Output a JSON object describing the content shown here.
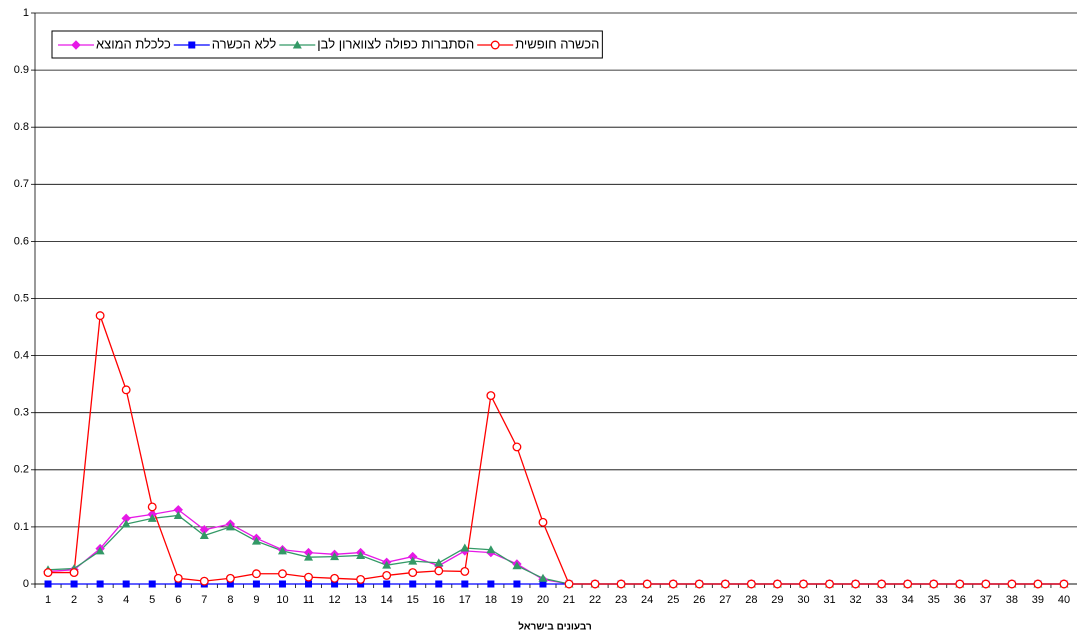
{
  "chart_data": {
    "type": "line",
    "x_label": "רבעונים בישראל",
    "categories": [
      1,
      2,
      3,
      4,
      5,
      6,
      7,
      8,
      9,
      10,
      11,
      12,
      13,
      14,
      15,
      16,
      17,
      18,
      19,
      20,
      21,
      22,
      23,
      24,
      25,
      26,
      27,
      28,
      29,
      30,
      31,
      32,
      33,
      34,
      35,
      36,
      37,
      38,
      39,
      40
    ],
    "ylim": [
      0,
      1
    ],
    "yticks": [
      0,
      0.1,
      0.2,
      0.3,
      0.4,
      0.5,
      0.6,
      0.7,
      0.8,
      0.9,
      1
    ],
    "grid": true,
    "series": [
      {
        "name": "כלכלת המוצא",
        "color": "#e619e6",
        "marker": "diamond",
        "values": [
          0.022,
          0.025,
          0.062,
          0.115,
          0.122,
          0.13,
          0.095,
          0.105,
          0.08,
          0.06,
          0.055,
          0.052,
          0.055,
          0.038,
          0.048,
          0.032,
          0.058,
          0.055,
          0.035,
          0.008,
          0,
          0,
          0,
          0,
          0,
          0,
          0,
          0,
          0,
          0,
          0,
          0,
          0,
          0,
          0,
          0,
          0,
          0,
          0,
          0
        ]
      },
      {
        "name": "ללא הכשרה",
        "color": "#0000ff",
        "marker": "square",
        "values": [
          0,
          0,
          0,
          0,
          0,
          0,
          0,
          0,
          0,
          0,
          0,
          0,
          0,
          0,
          0,
          0,
          0,
          0,
          0,
          0,
          0,
          0,
          0,
          0,
          0,
          0,
          0,
          0,
          0,
          0,
          0,
          0,
          0,
          0,
          0,
          0,
          0,
          0,
          0,
          0
        ]
      },
      {
        "name": "הסתברות כפולה לצווארון לבן",
        "color": "#339966",
        "marker": "triangle",
        "values": [
          0.025,
          0.027,
          0.058,
          0.105,
          0.115,
          0.12,
          0.085,
          0.1,
          0.075,
          0.058,
          0.047,
          0.048,
          0.05,
          0.033,
          0.04,
          0.037,
          0.063,
          0.06,
          0.032,
          0.01,
          0,
          0,
          0,
          0,
          0,
          0,
          0,
          0,
          0,
          0,
          0,
          0,
          0,
          0,
          0,
          0,
          0,
          0,
          0,
          0
        ]
      },
      {
        "name": "הכשרה חופשית",
        "color": "#ff0000",
        "marker": "circle",
        "values": [
          0.02,
          0.02,
          0.47,
          0.34,
          0.135,
          0.01,
          0.005,
          0.01,
          0.018,
          0.018,
          0.012,
          0.01,
          0.008,
          0.015,
          0.02,
          0.023,
          0.022,
          0.33,
          0.24,
          0.108,
          0,
          0,
          0,
          0,
          0,
          0,
          0,
          0,
          0,
          0,
          0,
          0,
          0,
          0,
          0,
          0,
          0,
          0,
          0,
          0
        ]
      }
    ]
  }
}
